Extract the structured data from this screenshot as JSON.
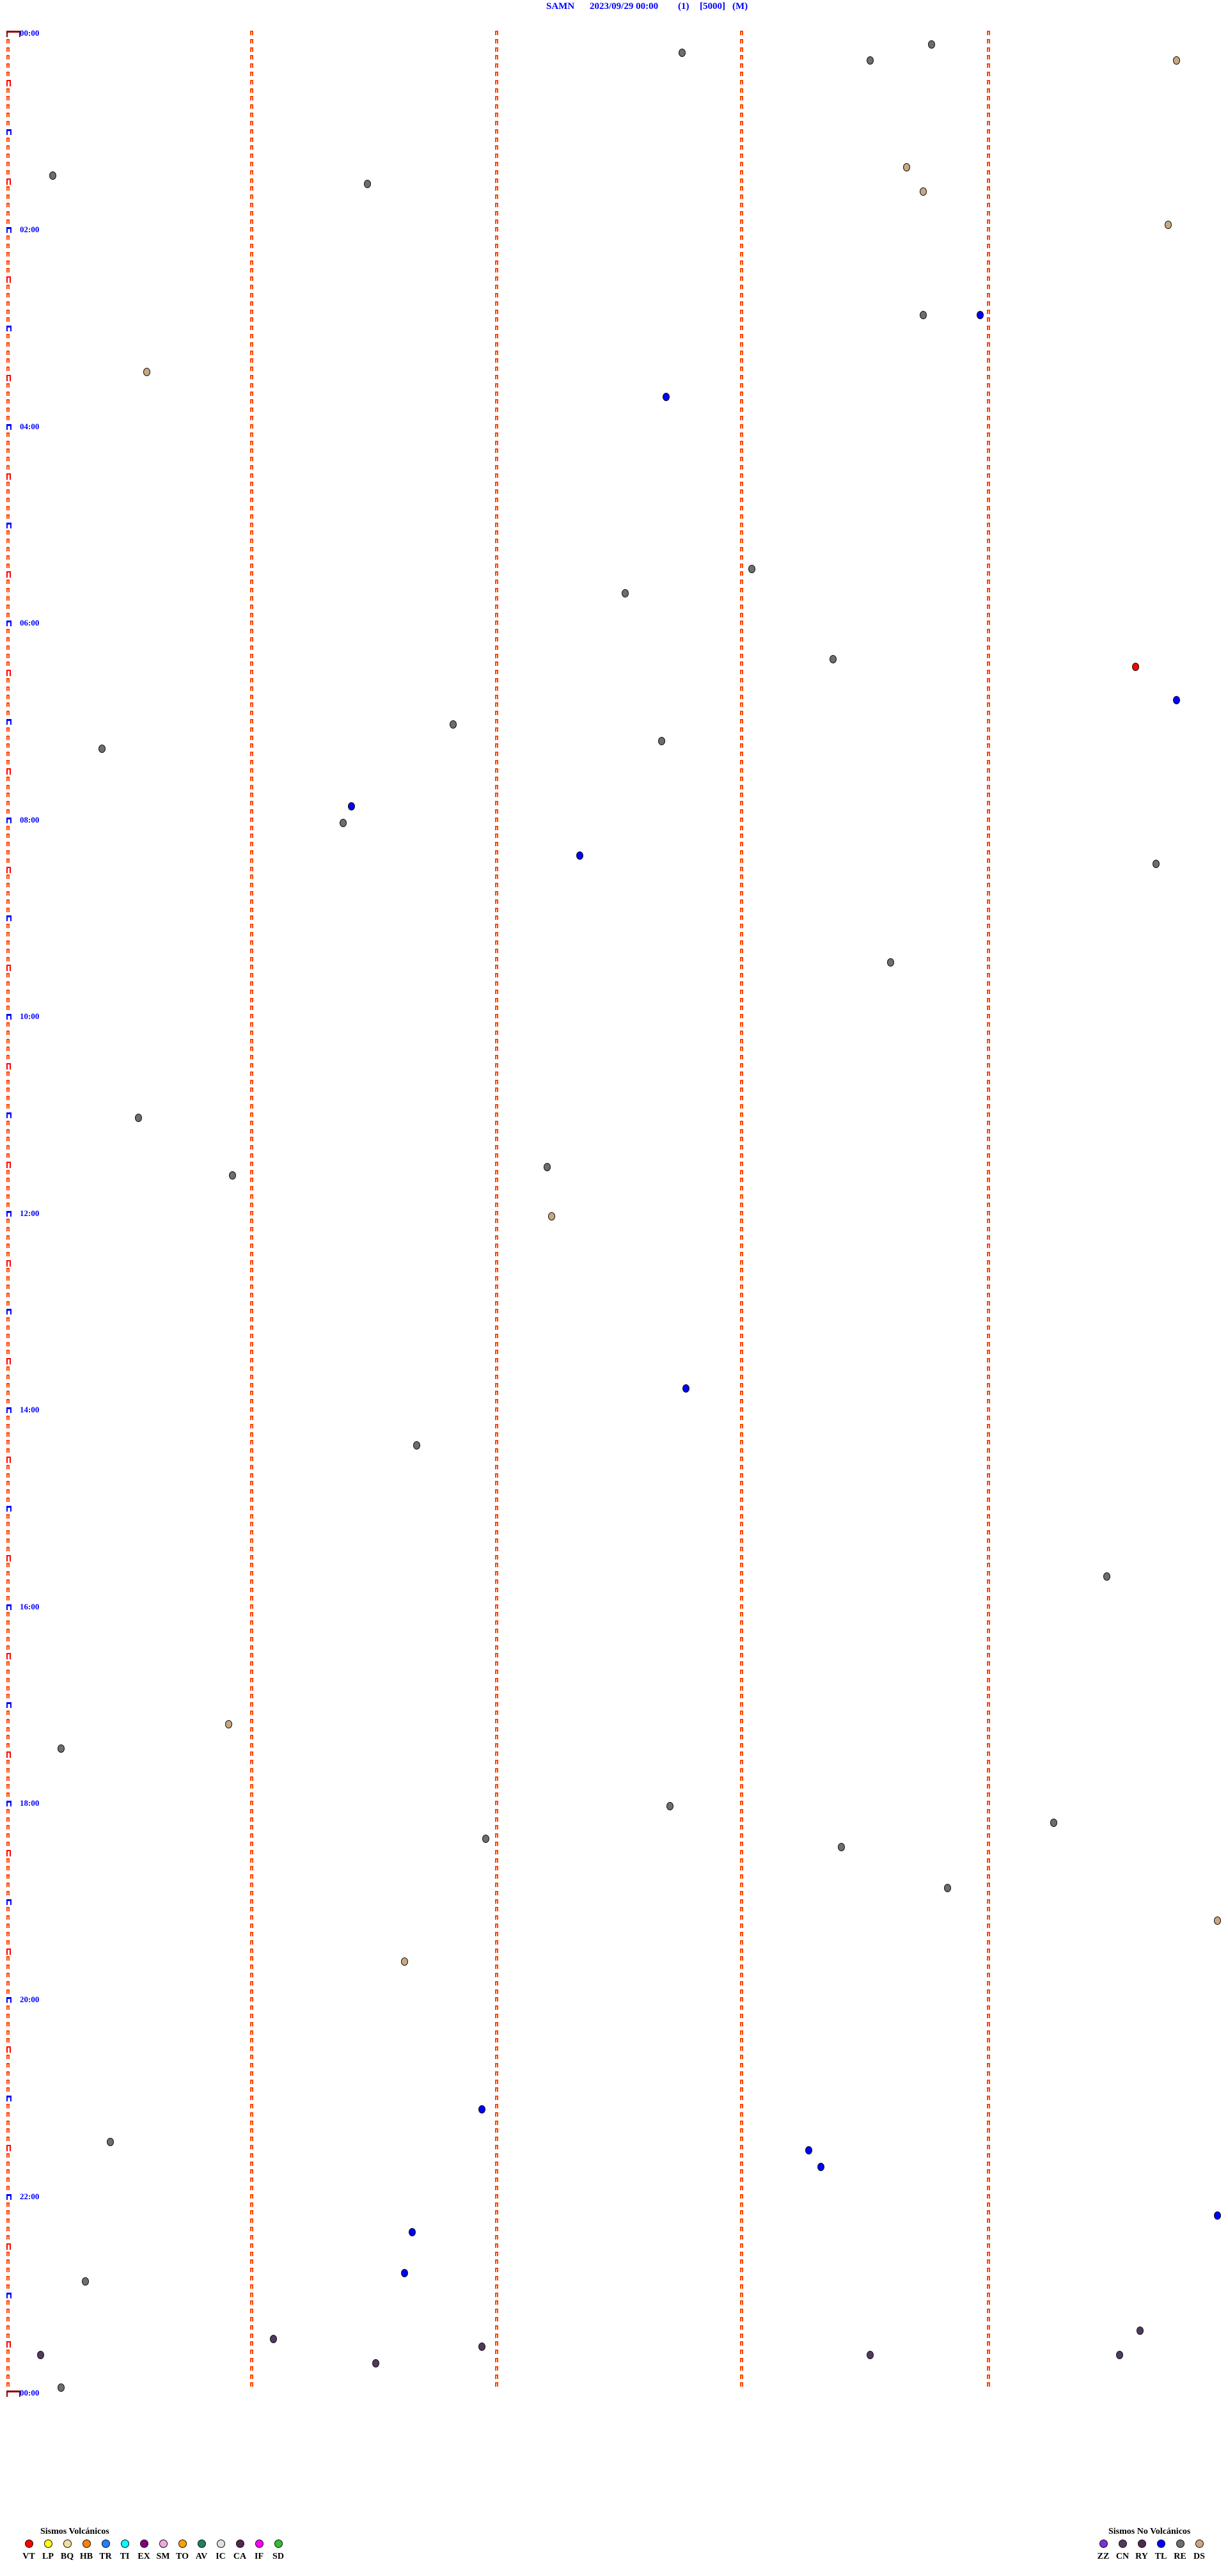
{
  "header": {
    "station": "SAMN",
    "datetime": "2023/09/29 00:00",
    "channel": "(1)",
    "scale": "[5000]",
    "mode": "(M)"
  },
  "chart_data": {
    "type": "scatter",
    "title": "SAMN 2023/09/29 00:00 (1) [5000] (M)",
    "row_minutes": 5,
    "hour_labels": [
      "00:00",
      "02:00",
      "04:00",
      "06:00",
      "08:00",
      "10:00",
      "12:00",
      "14:00",
      "16:00",
      "18:00",
      "20:00",
      "22:00",
      "00:00"
    ],
    "events": [
      {
        "t": "00:08:46",
        "type": "RE"
      },
      {
        "t": "00:12:45",
        "type": "RE"
      },
      {
        "t": "00:18:31",
        "type": "RE"
      },
      {
        "t": "00:19:46",
        "type": "DS"
      },
      {
        "t": "01:23:40",
        "type": "DS"
      },
      {
        "t": "01:25:11",
        "type": "RE"
      },
      {
        "t": "01:31:28",
        "type": "RE"
      },
      {
        "t": "01:38:44",
        "type": "DS"
      },
      {
        "t": "01:59:44",
        "type": "DS"
      },
      {
        "t": "02:53:44",
        "type": "RE"
      },
      {
        "t": "02:53:58",
        "type": "TL"
      },
      {
        "t": "03:25:34",
        "type": "DS"
      },
      {
        "t": "03:42:41",
        "type": "TL"
      },
      {
        "t": "05:28:02",
        "type": "RE"
      },
      {
        "t": "05:42:31",
        "type": "RE"
      },
      {
        "t": "06:23:22",
        "type": "RE"
      },
      {
        "t": "06:29:36",
        "type": "VT"
      },
      {
        "t": "06:49:46",
        "type": "TL"
      },
      {
        "t": "07:01:49",
        "type": "RE"
      },
      {
        "t": "07:12:40",
        "type": "RE"
      },
      {
        "t": "07:15:23",
        "type": "RE"
      },
      {
        "t": "07:51:24",
        "type": "TL"
      },
      {
        "t": "08:01:22",
        "type": "RE"
      },
      {
        "t": "08:22:20",
        "type": "TL"
      },
      {
        "t": "08:29:41",
        "type": "RE"
      },
      {
        "t": "09:28:36",
        "type": "RE"
      },
      {
        "t": "11:00:32",
        "type": "RE"
      },
      {
        "t": "11:32:12",
        "type": "RE"
      },
      {
        "t": "11:35:55",
        "type": "RE"
      },
      {
        "t": "12:02:13",
        "type": "DS"
      },
      {
        "t": "13:47:46",
        "type": "TL"
      },
      {
        "t": "14:21:40",
        "type": "RE"
      },
      {
        "t": "15:44:29",
        "type": "RE"
      },
      {
        "t": "17:10:54",
        "type": "DS"
      },
      {
        "t": "17:25:13",
        "type": "RE"
      },
      {
        "t": "18:02:42",
        "type": "RE"
      },
      {
        "t": "18:14:16",
        "type": "RE"
      },
      {
        "t": "18:21:57",
        "type": "RE"
      },
      {
        "t": "18:28:24",
        "type": "RE"
      },
      {
        "t": "18:53:50",
        "type": "RE"
      },
      {
        "t": "19:14:56",
        "type": "DS"
      },
      {
        "t": "19:36:37",
        "type": "DS"
      },
      {
        "t": "21:06:56",
        "type": "TL"
      },
      {
        "t": "21:25:25",
        "type": "RE"
      },
      {
        "t": "21:33:16",
        "type": "TL"
      },
      {
        "t": "21:43:19",
        "type": "TL"
      },
      {
        "t": "22:14:56",
        "type": "TL"
      },
      {
        "t": "22:21:39",
        "type": "TL"
      },
      {
        "t": "22:46:37",
        "type": "TL"
      },
      {
        "t": "22:50:19",
        "type": "RE"
      },
      {
        "t": "23:24:37",
        "type": "CN"
      },
      {
        "t": "23:26:05",
        "type": "CN"
      },
      {
        "t": "23:31:56",
        "type": "CN"
      },
      {
        "t": "23:35:08",
        "type": "CN"
      },
      {
        "t": "23:38:31",
        "type": "CN"
      },
      {
        "t": "23:39:32",
        "type": "CN"
      },
      {
        "t": "23:41:30",
        "type": "CN"
      },
      {
        "t": "23:55:13",
        "type": "RE"
      }
    ]
  },
  "legend": {
    "volcanic_title": "Sismos Volcánicos",
    "volcanic": [
      {
        "code": "VT",
        "color": "#ff0000"
      },
      {
        "code": "LP",
        "color": "#ffff00"
      },
      {
        "code": "BQ",
        "color": "#f0e0a0"
      },
      {
        "code": "HB",
        "color": "#ff8000"
      },
      {
        "code": "TR",
        "color": "#2080ff"
      },
      {
        "code": "TI",
        "color": "#00ffff"
      },
      {
        "code": "EX",
        "color": "#800080"
      },
      {
        "code": "SM",
        "color": "#f0a8e0"
      },
      {
        "code": "TO",
        "color": "#ffa000"
      },
      {
        "code": "AV",
        "color": "#208060"
      },
      {
        "code": "IC",
        "color": "#e0e0e0"
      },
      {
        "code": "CA",
        "color": "#502850"
      },
      {
        "code": "IF",
        "color": "#ff00ff"
      },
      {
        "code": "SD",
        "color": "#30c030"
      }
    ],
    "non_volcanic_title": "Sismos No Volcánicos",
    "non_volcanic": [
      {
        "code": "ZZ",
        "color": "#8030d0"
      },
      {
        "code": "CN",
        "color": "#503a60"
      },
      {
        "code": "RY",
        "color": "#502850"
      },
      {
        "code": "TL",
        "color": "#0000ff"
      },
      {
        "code": "RE",
        "color": "#6e6e6e"
      },
      {
        "code": "DS",
        "color": "#c8a880"
      }
    ]
  }
}
